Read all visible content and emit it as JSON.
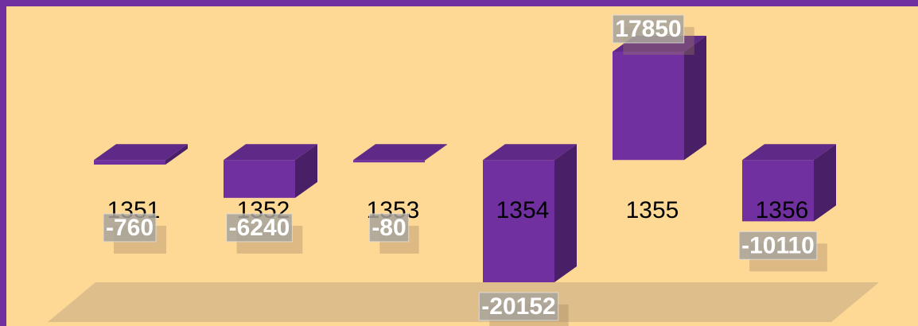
{
  "chart_data": {
    "type": "bar",
    "categories": [
      "1351",
      "1352",
      "1353",
      "1354",
      "1355",
      "1356"
    ],
    "values": [
      -760,
      -6240,
      -80,
      -20152,
      17850,
      -10110
    ],
    "color": "#7030a0"
  }
}
